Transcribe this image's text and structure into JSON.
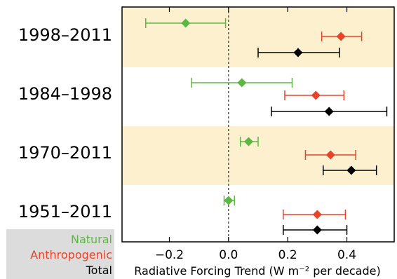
{
  "chart_data": {
    "type": "scatter",
    "orientation": "horizontal-forest-plot",
    "xlabel": "Radiative Forcing Trend (W m⁻² per decade)",
    "xlim": [
      -0.36,
      0.56
    ],
    "xticks": [
      -0.2,
      0.0,
      0.2,
      0.4
    ],
    "xtick_labels": [
      "−0.2",
      "0.0",
      "0.2",
      "0.4"
    ],
    "zero_line": "dashed",
    "band_colors": [
      "#fcf0cf",
      "#ffffff",
      "#fcf0cf",
      "#ffffff"
    ],
    "periods": [
      "1998–2011",
      "1984–1998",
      "1970–2011",
      "1951–2011"
    ],
    "series": [
      {
        "name": "Natural",
        "color": "#5cb843",
        "marker": "diamond",
        "values": [
          -0.145,
          0.045,
          0.068,
          0.0
        ],
        "ci_low": [
          -0.28,
          -0.125,
          0.04,
          -0.015
        ],
        "ci_high": [
          -0.01,
          0.215,
          0.1,
          0.02
        ]
      },
      {
        "name": "Anthropogenic",
        "color": "#e8432a",
        "marker": "diamond",
        "values": [
          0.38,
          0.295,
          0.345,
          0.3
        ],
        "ci_low": [
          0.315,
          0.19,
          0.26,
          0.185
        ],
        "ci_high": [
          0.45,
          0.39,
          0.43,
          0.395
        ]
      },
      {
        "name": "Total",
        "color": "#000000",
        "marker": "diamond",
        "values": [
          0.235,
          0.34,
          0.415,
          0.3
        ],
        "ci_low": [
          0.1,
          0.145,
          0.32,
          0.185
        ],
        "ci_high": [
          0.375,
          0.535,
          0.5,
          0.4
        ]
      }
    ],
    "legend": "bottom-left"
  }
}
